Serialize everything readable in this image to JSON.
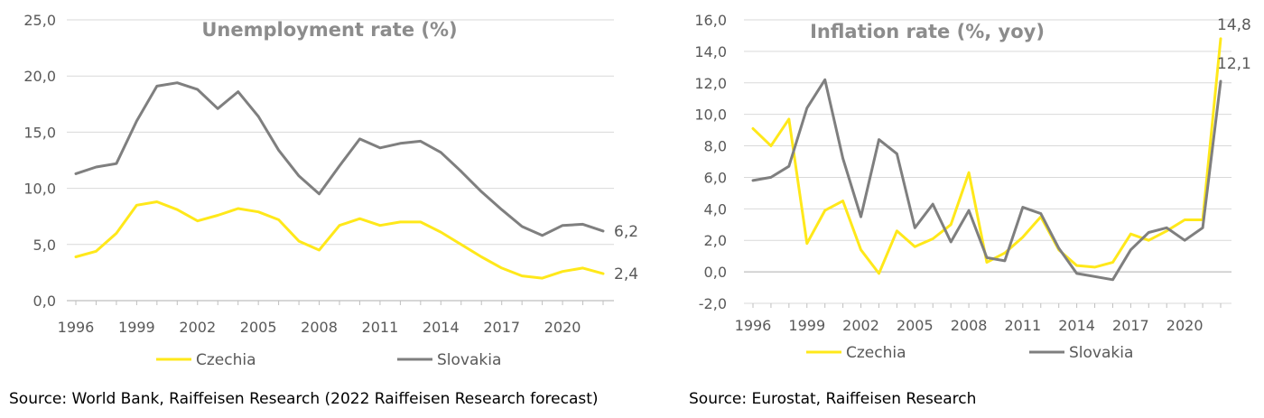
{
  "colors": {
    "czechia": "#ffe81a",
    "slovakia": "#7f7f7f",
    "grid": "#d9d9d9",
    "axis": "#bfbfbf"
  },
  "chart_data": [
    {
      "type": "line",
      "title": "Unemployment rate (%)",
      "years": [
        1996,
        1997,
        1998,
        1999,
        2000,
        2001,
        2002,
        2003,
        2004,
        2005,
        2006,
        2007,
        2008,
        2009,
        2010,
        2011,
        2012,
        2013,
        2014,
        2015,
        2016,
        2017,
        2018,
        2019,
        2020,
        2021,
        2022
      ],
      "x_tick_labels": [
        "1996",
        "1999",
        "2002",
        "2005",
        "2008",
        "2011",
        "2014",
        "2017",
        "2020"
      ],
      "y_tick_labels": [
        "0,0",
        "5,0",
        "10,0",
        "15,0",
        "20,0",
        "25,0"
      ],
      "ylim": [
        0,
        25
      ],
      "grid": true,
      "legend_position": "bottom",
      "series": [
        {
          "name": "Czechia",
          "color": "#ffe81a",
          "values": [
            3.9,
            4.4,
            6.0,
            8.5,
            8.8,
            8.1,
            7.1,
            7.6,
            8.2,
            7.9,
            7.2,
            5.3,
            4.5,
            6.7,
            7.3,
            6.7,
            7.0,
            7.0,
            6.1,
            5.0,
            3.9,
            2.9,
            2.2,
            2.0,
            2.6,
            2.9,
            2.4
          ],
          "end_label": "2,4"
        },
        {
          "name": "Slovakia",
          "color": "#7f7f7f",
          "values": [
            11.3,
            11.9,
            12.2,
            16.0,
            19.1,
            19.4,
            18.8,
            17.1,
            18.6,
            16.4,
            13.4,
            11.1,
            9.5,
            12.0,
            14.4,
            13.6,
            14.0,
            14.2,
            13.2,
            11.5,
            9.7,
            8.1,
            6.6,
            5.8,
            6.7,
            6.8,
            6.2
          ],
          "end_label": "6,2"
        }
      ]
    },
    {
      "type": "line",
      "title": "Inflation rate (%, yoy)",
      "years": [
        1996,
        1997,
        1998,
        1999,
        2000,
        2001,
        2002,
        2003,
        2004,
        2005,
        2006,
        2007,
        2008,
        2009,
        2010,
        2011,
        2012,
        2013,
        2014,
        2015,
        2016,
        2017,
        2018,
        2019,
        2020,
        2021,
        2022
      ],
      "x_tick_labels": [
        "1996",
        "1999",
        "2002",
        "2005",
        "2008",
        "2011",
        "2014",
        "2017",
        "2020"
      ],
      "y_tick_labels": [
        "-2,0",
        "0,0",
        "2,0",
        "4,0",
        "6,0",
        "8,0",
        "10,0",
        "12,0",
        "14,0",
        "16,0"
      ],
      "ylim": [
        -2,
        16
      ],
      "grid": true,
      "legend_position": "bottom",
      "series": [
        {
          "name": "Czechia",
          "color": "#ffe81a",
          "values": [
            9.1,
            8.0,
            9.7,
            1.8,
            3.9,
            4.5,
            1.4,
            -0.1,
            2.6,
            1.6,
            2.1,
            3.0,
            6.3,
            0.6,
            1.2,
            2.2,
            3.5,
            1.4,
            0.4,
            0.3,
            0.6,
            2.4,
            2.0,
            2.6,
            3.3,
            3.3,
            14.8
          ],
          "end_label": "14,8"
        },
        {
          "name": "Slovakia",
          "color": "#7f7f7f",
          "values": [
            5.8,
            6.0,
            6.7,
            10.4,
            12.2,
            7.2,
            3.5,
            8.4,
            7.5,
            2.8,
            4.3,
            1.9,
            3.9,
            0.9,
            0.7,
            4.1,
            3.7,
            1.5,
            -0.1,
            -0.3,
            -0.5,
            1.4,
            2.5,
            2.8,
            2.0,
            2.8,
            12.1
          ],
          "end_label": "12,1"
        }
      ]
    }
  ],
  "sources": {
    "left": "Source: World Bank, Raiffeisen Research (2022 Raiffeisen Research forecast)",
    "right": "Source: Eurostat, Raiffeisen Research"
  }
}
